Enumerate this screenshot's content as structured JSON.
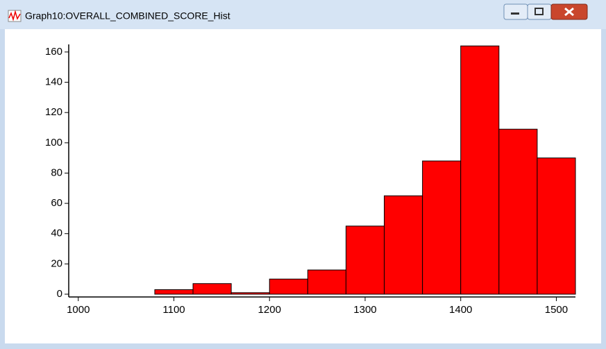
{
  "window": {
    "title": "Graph10:OVERALL_COMBINED_SCORE_Hist"
  },
  "chart_data": {
    "type": "histogram",
    "bins": [
      1000,
      1040,
      1080,
      1120,
      1160,
      1200,
      1240,
      1280,
      1320,
      1360,
      1400,
      1440,
      1480,
      1520
    ],
    "values": [
      0,
      0,
      3,
      7,
      1,
      10,
      16,
      45,
      65,
      88,
      164,
      109,
      90
    ],
    "color": "#ff0000",
    "xlim": [
      990,
      1520
    ],
    "xticks": [
      1000,
      1100,
      1200,
      1300,
      1400,
      1500
    ],
    "ylim": [
      0,
      165
    ],
    "yticks": [
      0,
      20,
      40,
      60,
      80,
      100,
      120,
      140,
      160
    ],
    "grid": false
  }
}
